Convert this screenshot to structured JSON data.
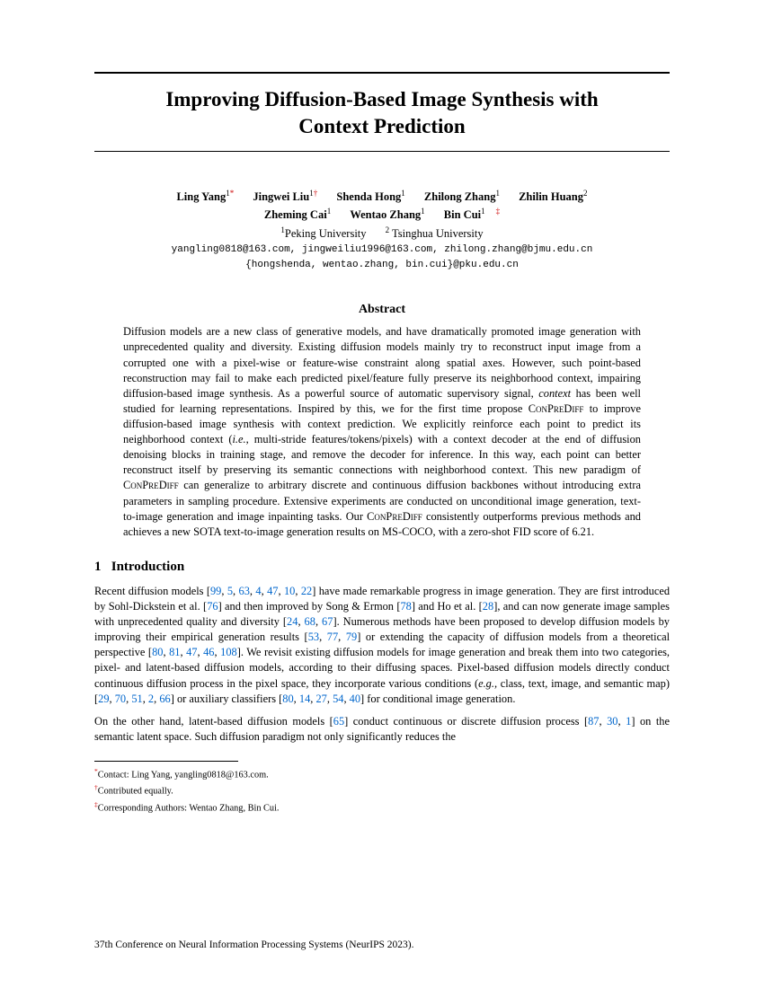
{
  "colors": {
    "text": "#000000",
    "background": "#ffffff",
    "link": "#0066cc",
    "marker": "#cc0000"
  },
  "typography": {
    "title_size_pt": 23,
    "body_size_pt": 12.4,
    "footnote_size_pt": 10.3,
    "mono_family": "Courier New"
  },
  "title_line1": "Improving Diffusion-Based Image Synthesis with",
  "title_line2": "Context Prediction",
  "authors": {
    "row1": [
      {
        "name": "Ling Yang",
        "sup": "1",
        "mark": "*"
      },
      {
        "name": "Jingwei Liu",
        "sup": "1",
        "mark": "†"
      },
      {
        "name": "Shenda Hong",
        "sup": "1",
        "mark": ""
      },
      {
        "name": "Zhilong Zhang",
        "sup": "1",
        "mark": ""
      },
      {
        "name": "Zhilin Huang",
        "sup": "2",
        "mark": ""
      }
    ],
    "row2": [
      {
        "name": "Zheming Cai",
        "sup": "1",
        "mark": ""
      },
      {
        "name": "Wentao Zhang",
        "sup": "1",
        "mark": ""
      },
      {
        "name": "Bin Cui",
        "sup": "1",
        "mark": "‡"
      }
    ]
  },
  "affiliations": {
    "a1": {
      "num": "1",
      "text": "Peking University"
    },
    "a2": {
      "num": "2",
      "text": "Tsinghua University"
    }
  },
  "emails": {
    "line1": "yangling0818@163.com, jingweiliu1996@163.com, zhilong.zhang@bjmu.edu.cn",
    "line2": "{hongshenda, wentao.zhang, bin.cui}@pku.edu.cn"
  },
  "abstract": {
    "heading": "Abstract",
    "body_pre": "Diffusion models are a new class of generative models, and have dramatically promoted image generation with unprecedented quality and diversity. Existing diffusion models mainly try to reconstruct input image from a corrupted one with a pixel-wise or feature-wise constraint along spatial axes. However, such point-based reconstruction may fail to make each predicted pixel/feature fully preserve its neighborhood context, impairing diffusion-based image synthesis. As a powerful source of automatic supervisory signal, ",
    "body_italic": "context",
    "body_mid1": " has been well studied for learning representations. Inspired by this, we for the first time propose C",
    "sc1": "on",
    "body_mid1b": "P",
    "sc1b": "re",
    "body_mid1c": "D",
    "sc1c": "iff",
    "body_mid2": " to improve diffusion-based image synthesis with context prediction. We explicitly reinforce each point to predict its neighborhood context (",
    "body_italic2": "i.e.,",
    "body_mid3": " multi-stride features/tokens/pixels) with a context decoder at the end of diffusion denoising blocks in training stage, and remove the decoder for inference. In this way, each point can better reconstruct itself by preserving its semantic connections with neighborhood context. This new paradigm of C",
    "sc2": "on",
    "body_mid3b": "P",
    "sc2b": "re",
    "body_mid3c": "D",
    "sc2c": "iff",
    "body_mid4": " can generalize to arbitrary discrete and continuous diffusion backbones without introducing extra parameters in sampling procedure. Extensive experiments are conducted on unconditional image generation, text-to-image generation and image inpainting tasks. Our C",
    "sc3": "on",
    "body_mid4b": "P",
    "sc3b": "re",
    "body_mid4c": "D",
    "sc3c": "iff",
    "body_post": " consistently outperforms previous methods and achieves a new SOTA text-to-image generation results on MS-COCO, with a zero-shot FID score of 6.21."
  },
  "section1": {
    "number": "1",
    "title": "Introduction"
  },
  "para1": {
    "t1": "Recent diffusion models [",
    "c1": "99",
    "t2": ", ",
    "c2": "5",
    "t3": ", ",
    "c3": "63",
    "t4": ", ",
    "c4": "4",
    "t5": ", ",
    "c5": "47",
    "t6": ", ",
    "c6": "10",
    "t7": ", ",
    "c7": "22",
    "t8": "] have made remarkable progress in image generation. They are first introduced by Sohl-Dickstein et al. [",
    "c8": "76",
    "t9": "] and then improved by Song & Ermon [",
    "c9": "78",
    "t10": "] and Ho et al. [",
    "c10": "28",
    "t11": "], and can now generate image samples with unprecedented quality and diversity [",
    "c11": "24",
    "t12": ", ",
    "c12": "68",
    "t13": ", ",
    "c13": "67",
    "t14": "]. Numerous methods have been proposed to develop diffusion models by improving their empirical generation results [",
    "c14": "53",
    "t15": ", ",
    "c15": "77",
    "t16": ", ",
    "c16": "79",
    "t17": "] or extending the capacity of diffusion models from a theoretical perspective [",
    "c17": "80",
    "t18": ", ",
    "c18": "81",
    "t19": ", ",
    "c19": "47",
    "t20": ", ",
    "c20": "46",
    "t21": ", ",
    "c21": "108",
    "t22": "]. We revisit existing diffusion models for image generation and break them into two categories, pixel- and latent-based diffusion models, according to their diffusing spaces. Pixel-based diffusion models directly conduct continuous diffusion process in the pixel space, they incorporate various conditions (",
    "i1": "e.g.,",
    "t23": " class, text, image, and semantic map) [",
    "c22": "29",
    "t24": ", ",
    "c23": "70",
    "t25": ", ",
    "c24": "51",
    "t26": ", ",
    "c25": "2",
    "t27": ", ",
    "c26": "66",
    "t28": "] or auxiliary classifiers [",
    "c27": "80",
    "t29": ", ",
    "c28": "14",
    "t30": ", ",
    "c29": "27",
    "t31": ", ",
    "c30": "54",
    "t32": ", ",
    "c31": "40",
    "t33": "] for conditional image generation."
  },
  "para2": {
    "t1": "On the other hand, latent-based diffusion models [",
    "c1": "65",
    "t2": "] conduct continuous or discrete diffusion process [",
    "c2": "87",
    "t3": ", ",
    "c3": "30",
    "t4": ", ",
    "c4": "1",
    "t5": "] on the semantic latent space. Such diffusion paradigm not only significantly reduces the"
  },
  "footnotes": {
    "f1": {
      "mark": "*",
      "text": "Contact: Ling Yang, yangling0818@163.com."
    },
    "f2": {
      "mark": "†",
      "text": "Contributed equally."
    },
    "f3": {
      "mark": "‡",
      "text": "Corresponding Authors: Wentao Zhang, Bin Cui."
    }
  },
  "venue": "37th Conference on Neural Information Processing Systems (NeurIPS 2023)."
}
